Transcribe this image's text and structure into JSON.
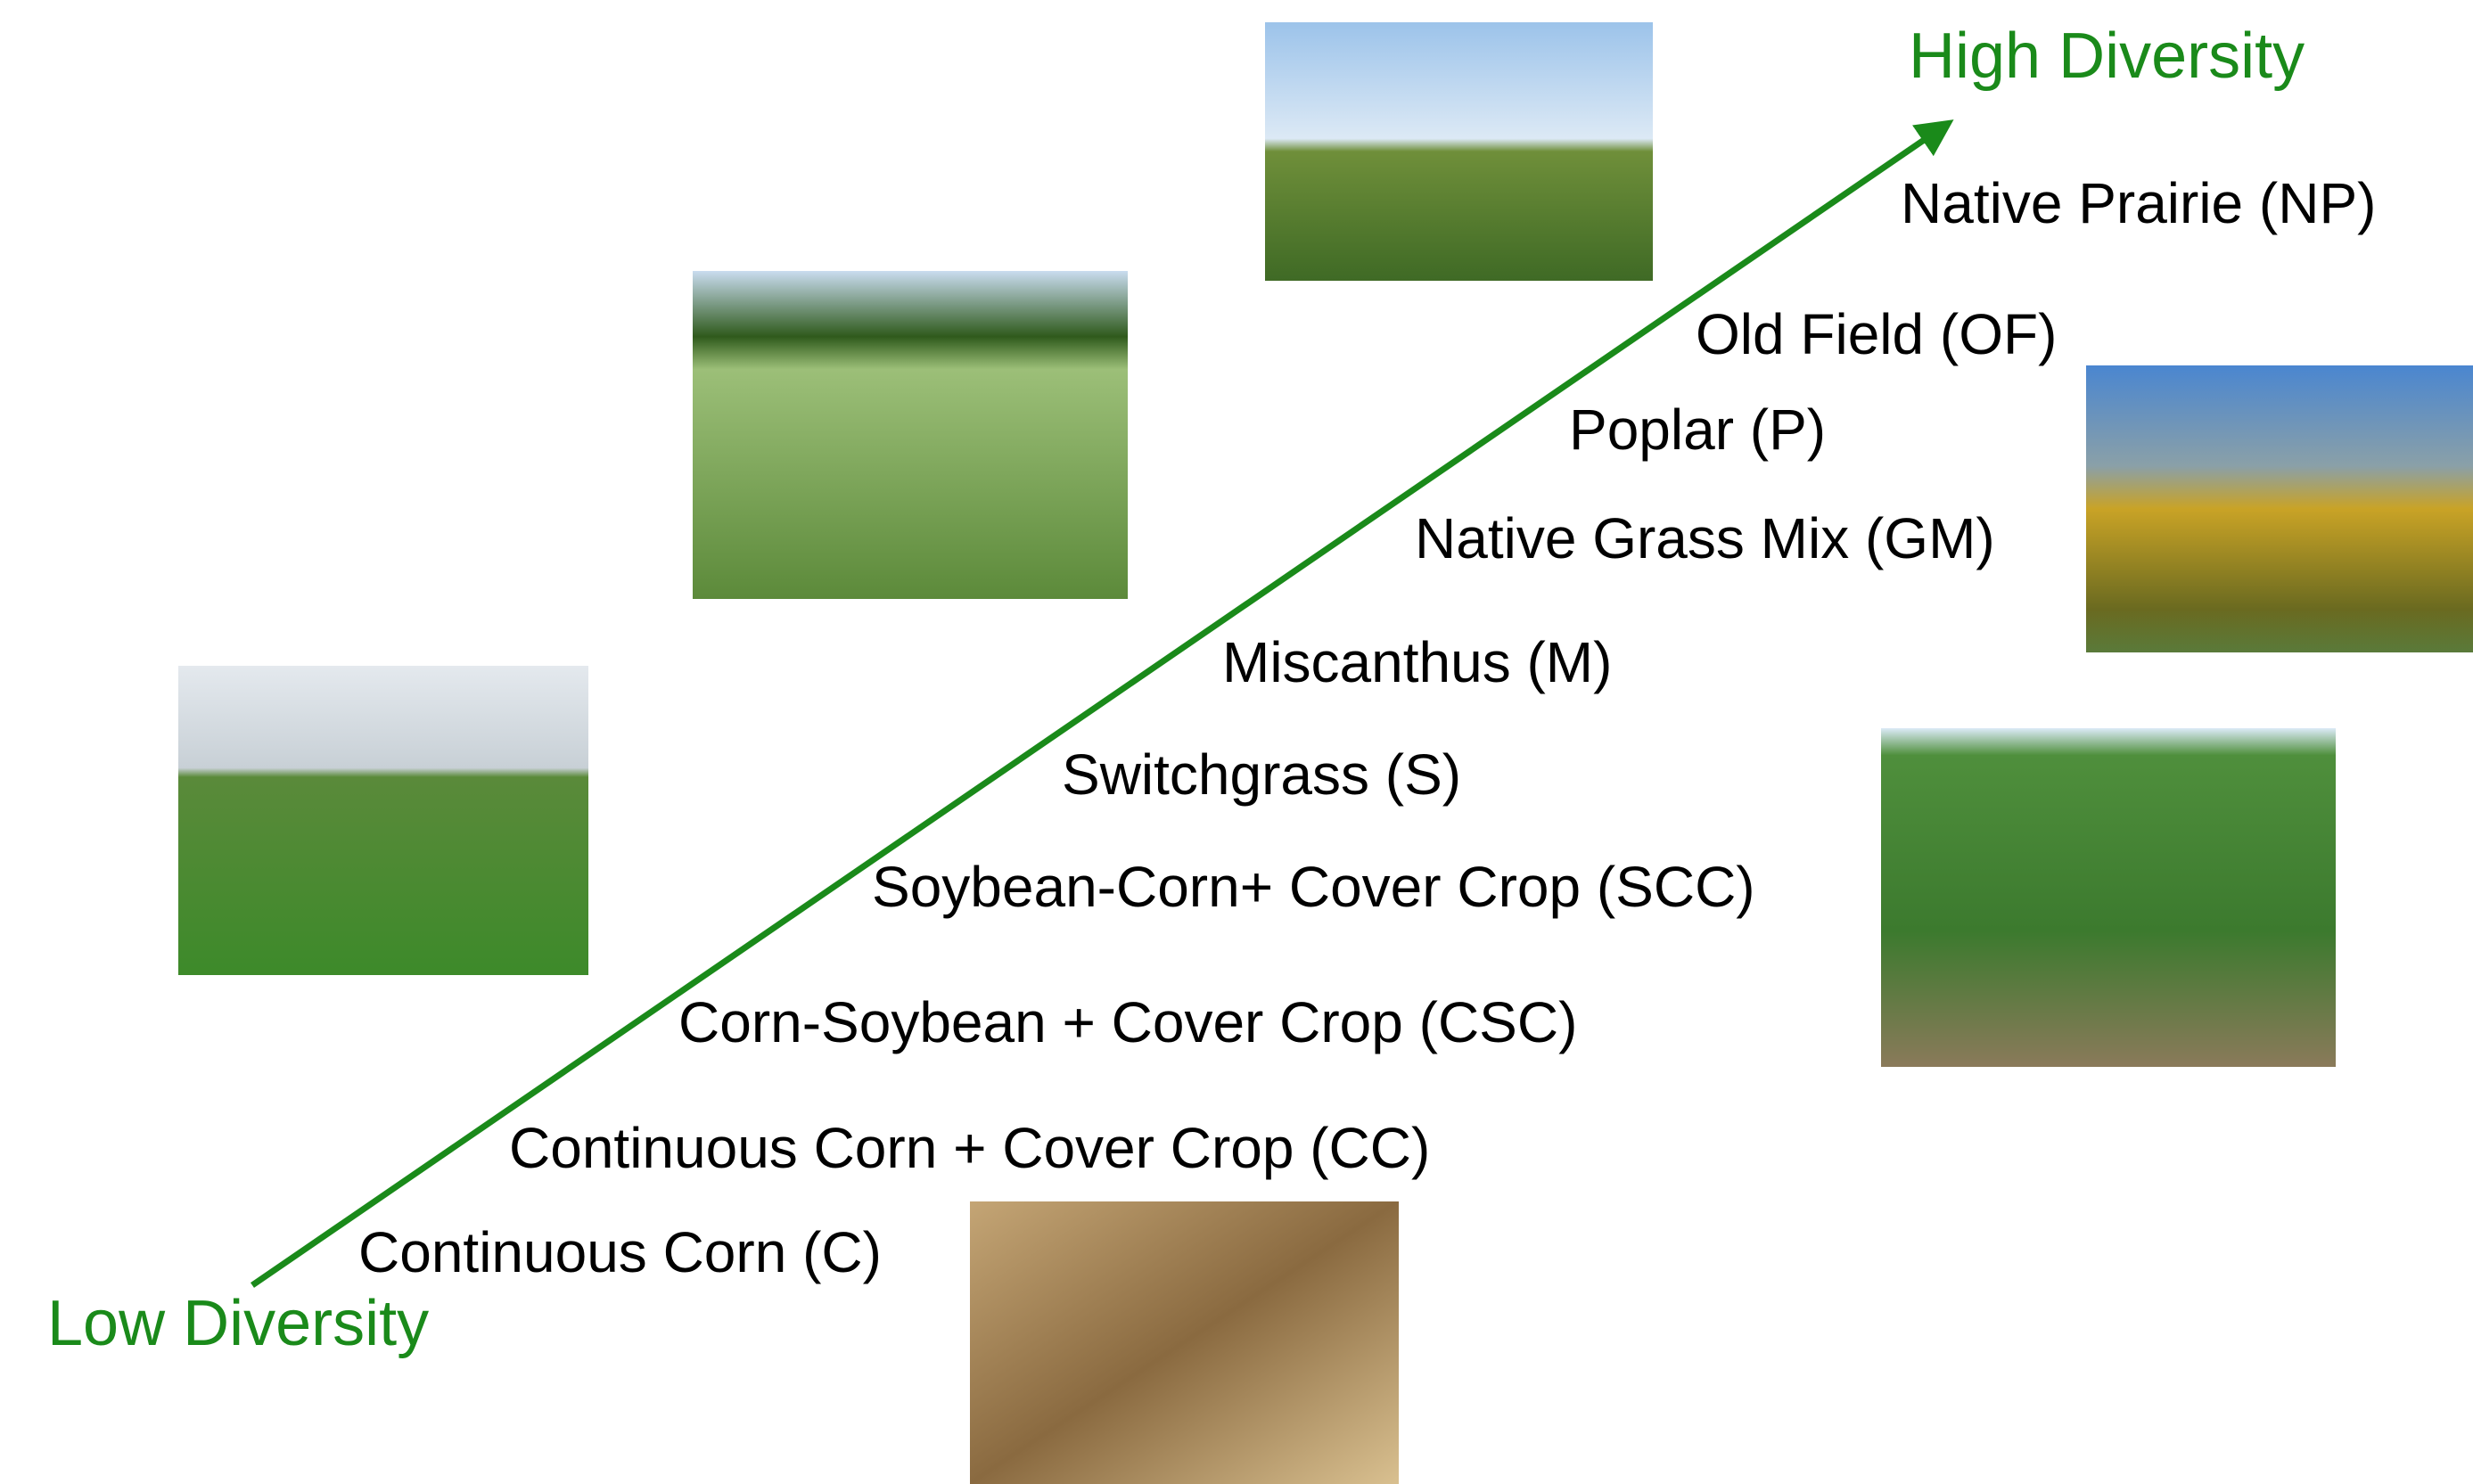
{
  "high_label": "High Diversity",
  "low_label": "Low Diversity",
  "systems": [
    "Native Prairie (NP)",
    "Old Field (OF)",
    "Poplar (P)",
    "Native Grass Mix (GM)",
    "Miscanthus (M)",
    "Switchgrass (S)",
    "Soybean-Corn+ Cover Crop (SCC)",
    "Corn-Soybean + Cover Crop (CSC)",
    "Continuous Corn + Cover Crop (CC)",
    "Continuous Corn (C)"
  ]
}
